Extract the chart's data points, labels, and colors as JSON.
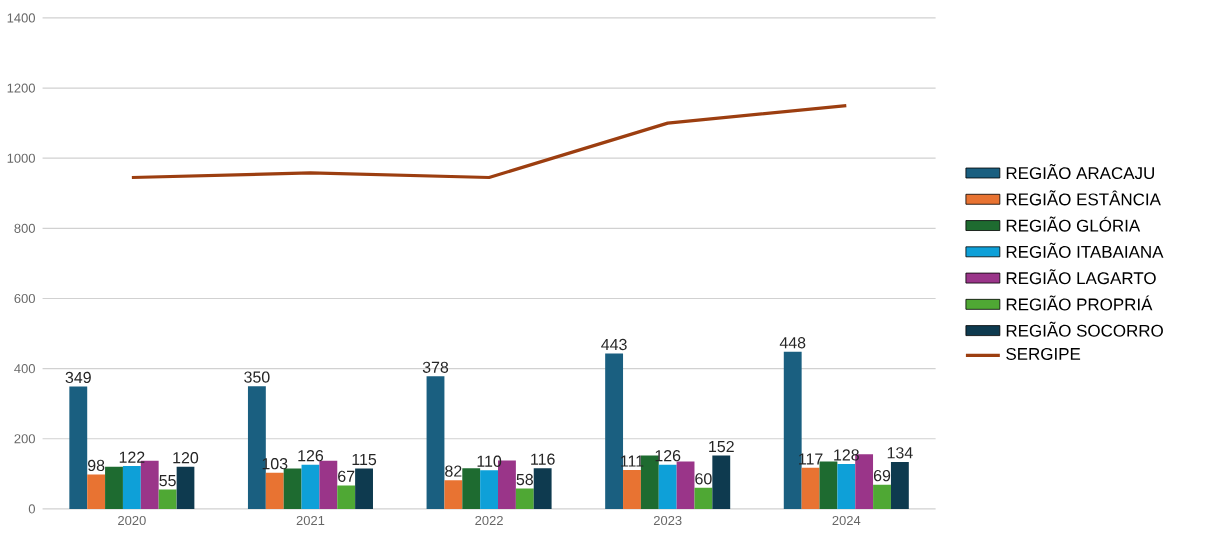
{
  "chart_data": {
    "type": "bar",
    "categories": [
      "2020",
      "2021",
      "2022",
      "2023",
      "2024"
    ],
    "series": [
      {
        "name": "REGIÃO ARACAJU",
        "color": "#1a5f80",
        "values": [
          349,
          350,
          378,
          443,
          448
        ],
        "value_labels": [
          "349",
          "350",
          "378",
          "443",
          "448"
        ]
      },
      {
        "name": "REGIÃO ESTÂNCIA",
        "color": "#e87332",
        "values": [
          98,
          103,
          82,
          111,
          117
        ],
        "value_labels": [
          "98",
          "103",
          "82",
          "111",
          "117"
        ]
      },
      {
        "name": "REGIÃO GLÓRIA",
        "color": "#1e6b30",
        "values": [
          120,
          115,
          116,
          152,
          135
        ]
      },
      {
        "name": "REGIÃO ITABAIANA",
        "color": "#0ea0d8",
        "values": [
          122,
          126,
          110,
          126,
          128
        ],
        "value_labels": [
          "122",
          "126",
          "110",
          "126",
          "128"
        ]
      },
      {
        "name": "REGIÃO LAGARTO",
        "color": "#9a3589",
        "values": [
          137,
          137,
          138,
          135,
          156
        ]
      },
      {
        "name": "REGIÃO PROPRIÁ",
        "color": "#4fa834",
        "values": [
          55,
          67,
          58,
          60,
          69
        ],
        "value_labels": [
          "55",
          "67",
          "58",
          "60",
          "69"
        ]
      },
      {
        "name": "REGIÃO SOCORRO",
        "color": "#0e3a4f",
        "values": [
          120,
          115,
          116,
          152,
          134
        ],
        "value_labels": [
          "120",
          "115",
          "116",
          "152",
          "134"
        ]
      },
      {
        "name": "SERGIPE",
        "type": "line",
        "color": "#9c3e10",
        "values": [
          945,
          958,
          945,
          1100,
          1150
        ]
      }
    ],
    "ylim": [
      0,
      1400
    ],
    "yticks": [
      0,
      200,
      400,
      600,
      800,
      1000,
      1200,
      1400
    ],
    "grid": "y",
    "legend": "right",
    "marker": "none",
    "line_style": "solid"
  }
}
